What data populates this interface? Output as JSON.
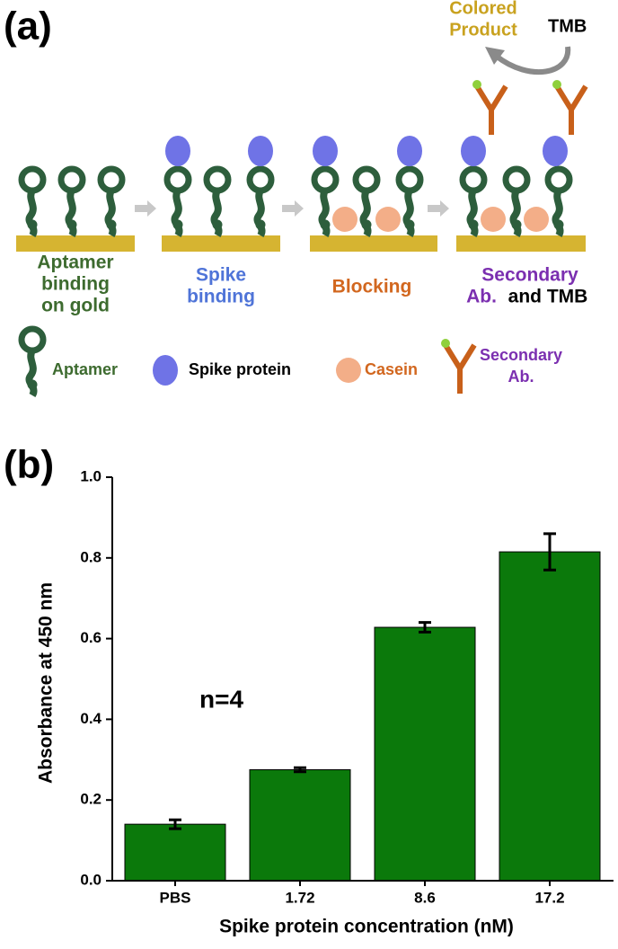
{
  "panel_a": {
    "label": "(a)",
    "product": [
      "Colored",
      "Product"
    ],
    "reagent": "TMB",
    "steps": [
      [
        "Aptamer",
        "binding",
        "on gold"
      ],
      [
        "Spike",
        "binding"
      ],
      [
        "Blocking"
      ],
      [
        "Secondary",
        "Ab.",
        "and TMB"
      ]
    ],
    "legend": [
      [
        "Aptamer"
      ],
      [
        "Spike protein"
      ],
      [
        "Casein"
      ],
      [
        "Secondary",
        "Ab."
      ]
    ]
  },
  "panel_b_label": "(b)",
  "chart_data": {
    "type": "bar",
    "annotation": "n=4",
    "x_label": "Spike protein concentration (nM)",
    "y_label": "Absorbance at 450 nm",
    "categories": [
      "PBS",
      "1.72",
      "8.6",
      "17.2"
    ],
    "values": [
      0.14,
      0.275,
      0.628,
      0.815
    ],
    "errors": [
      0.011,
      0.005,
      0.012,
      0.045
    ],
    "color": "#0b790b",
    "ylim": [
      0,
      1.0
    ],
    "yticks": [
      {
        "value": 0,
        "label": "0.0"
      },
      0.2,
      0.4,
      0.6,
      0.8,
      {
        "value": 1.0,
        "label": "1.0"
      }
    ]
  }
}
